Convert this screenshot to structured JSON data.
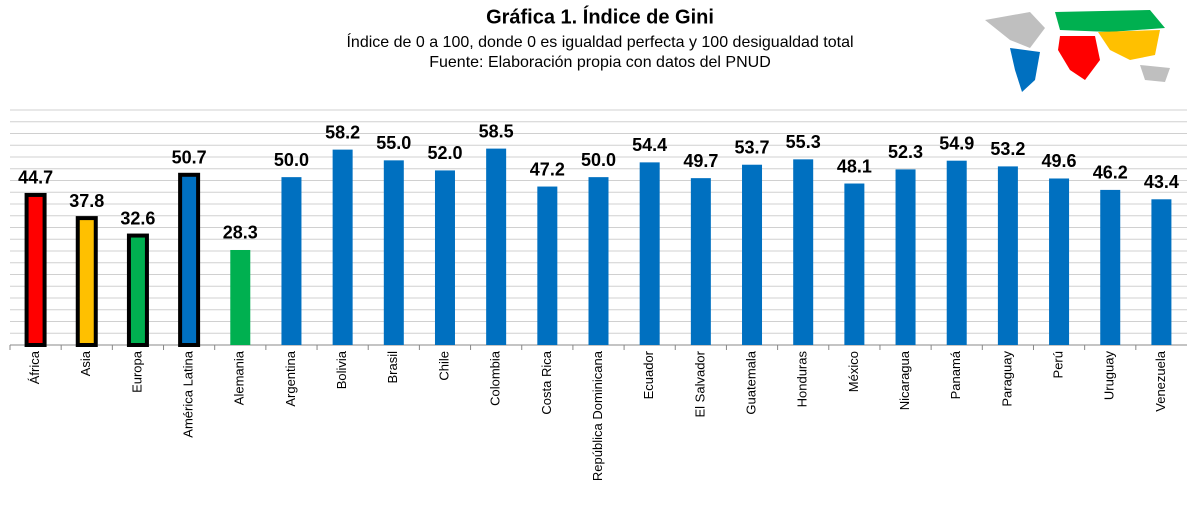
{
  "chart_data": {
    "type": "bar",
    "title": "Gráfica 1. Índice de Gini",
    "subtitle": [
      "Índice de 0 a 100, donde 0 es igualdad perfecta y 100 desigualdad total",
      "Fuente: Elaboración propia con datos del PNUD"
    ],
    "categories": [
      "África",
      "Asia",
      "Europa",
      "América Latina",
      "Alemania",
      "Argentina",
      "Bolivia",
      "Brasil",
      "Chile",
      "Colombia",
      "Costa Rica",
      "República Dominicana",
      "Ecuador",
      "El Salvador",
      "Guatemala",
      "Honduras",
      "México",
      "Nicaragua",
      "Panamá",
      "Paraguay",
      "Perú",
      "Uruguay",
      "Venezuela"
    ],
    "values": [
      44.7,
      37.8,
      32.6,
      50.7,
      28.3,
      50.0,
      58.2,
      55.0,
      52.0,
      58.5,
      47.2,
      50.0,
      54.4,
      49.7,
      53.7,
      55.3,
      48.1,
      52.3,
      54.9,
      53.2,
      49.6,
      46.2,
      43.4
    ],
    "value_labels": [
      "44.7",
      "37.8",
      "32.6",
      "50.7",
      "28.3",
      "50.0",
      "58.2",
      "55.0",
      "52.0",
      "58.5",
      "47.2",
      "50.0",
      "54.4",
      "49.7",
      "53.7",
      "55.3",
      "48.1",
      "52.3",
      "54.9",
      "53.2",
      "49.6",
      "46.2",
      "43.4"
    ],
    "colors": [
      "#ff0000",
      "#ffc000",
      "#00b050",
      "#0070c0",
      "#00b050",
      "#0070c0",
      "#0070c0",
      "#0070c0",
      "#0070c0",
      "#0070c0",
      "#0070c0",
      "#0070c0",
      "#0070c0",
      "#0070c0",
      "#0070c0",
      "#0070c0",
      "#0070c0",
      "#0070c0",
      "#0070c0",
      "#0070c0",
      "#0070c0",
      "#0070c0",
      "#0070c0"
    ],
    "edgecolors": [
      "#000000",
      "#000000",
      "#000000",
      "#000000",
      "none",
      "none",
      "none",
      "none",
      "none",
      "none",
      "none",
      "none",
      "none",
      "none",
      "none",
      "none",
      "none",
      "none",
      "none",
      "none",
      "none",
      "none",
      "none"
    ],
    "ylim": [
      0,
      70
    ],
    "yticks": [
      0,
      3.5,
      7,
      10.5,
      14,
      17.5,
      21,
      24.5,
      28,
      31.5,
      35,
      38.5,
      42,
      45.5,
      49,
      52.5,
      56,
      59.5,
      63,
      66.5,
      70
    ],
    "grid": true
  }
}
